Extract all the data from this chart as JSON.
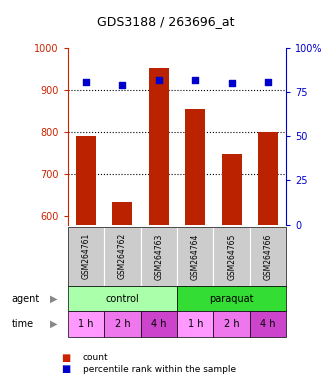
{
  "title": "GDS3188 / 263696_at",
  "samples": [
    "GSM264761",
    "GSM264762",
    "GSM264763",
    "GSM264764",
    "GSM264765",
    "GSM264766"
  ],
  "counts": [
    790,
    635,
    952,
    855,
    748,
    800
  ],
  "percentiles": [
    81,
    79,
    82,
    82,
    80,
    81
  ],
  "ylim_left": [
    580,
    1000
  ],
  "ylim_right": [
    0,
    100
  ],
  "yticks_left": [
    600,
    700,
    800,
    900,
    1000
  ],
  "yticks_right": [
    0,
    25,
    50,
    75,
    100
  ],
  "bar_color": "#bb2200",
  "dot_color": "#0000cc",
  "bar_bottom": 580,
  "agent_groups": [
    {
      "label": "control",
      "span": [
        0,
        3
      ],
      "color": "#aaffaa"
    },
    {
      "label": "paraquat",
      "span": [
        3,
        6
      ],
      "color": "#33dd33"
    }
  ],
  "time_labels": [
    "1 h",
    "2 h",
    "4 h",
    "1 h",
    "2 h",
    "4 h"
  ],
  "time_colors": [
    "#ff99ff",
    "#ee77ee",
    "#cc44cc",
    "#ff99ff",
    "#ee77ee",
    "#cc44cc"
  ],
  "sample_box_color": "#cccccc",
  "left_tick_color": "#cc2200",
  "right_tick_color": "#0000cc",
  "legend_count_color": "#cc2200",
  "legend_pct_color": "#0000cc",
  "title_fontsize": 9,
  "tick_fontsize": 7,
  "sample_fontsize": 5.5,
  "label_fontsize": 7,
  "time_fontsize": 7
}
